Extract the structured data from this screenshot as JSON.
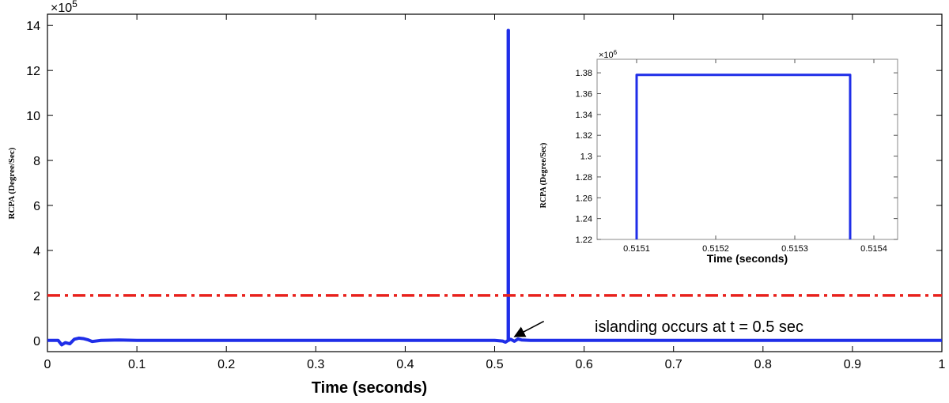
{
  "chart_data": [
    {
      "type": "line",
      "title": "",
      "xlabel": "Time (seconds)",
      "ylabel": "RCPA (Degree/Sec)",
      "y_exponent_label": "×10",
      "y_exponent_power": "5",
      "xlim": [
        0,
        1
      ],
      "ylim": [
        -0.5,
        14.5
      ],
      "x_ticks": [
        0,
        0.1,
        0.2,
        0.3,
        0.4,
        0.5,
        0.6,
        0.7,
        0.8,
        0.9,
        1
      ],
      "x_tick_labels": [
        "0",
        "0.1",
        "0.2",
        "0.3",
        "0.4",
        "0.5",
        "0.6",
        "0.7",
        "0.8",
        "0.9",
        "1"
      ],
      "y_ticks": [
        0,
        2,
        4,
        6,
        8,
        10,
        12,
        14
      ],
      "y_tick_labels": [
        "0",
        "2",
        "4",
        "6",
        "8",
        "10",
        "12",
        "14"
      ],
      "grid": false,
      "series": [
        {
          "color": "#1f2ee8",
          "style": "solid",
          "x": [
            0,
            0.012,
            0.016,
            0.02,
            0.025,
            0.03,
            0.035,
            0.04,
            0.045,
            0.05,
            0.06,
            0.08,
            0.1,
            0.3,
            0.5,
            0.509,
            0.512,
            0.5151,
            0.5151,
            0.5154,
            0.5154,
            0.518,
            0.522,
            0.526,
            0.53,
            0.54,
            0.6,
            1
          ],
          "y": [
            0,
            0,
            -0.2,
            -0.1,
            -0.15,
            0.05,
            0.1,
            0.08,
            0.03,
            -0.05,
            0,
            0.02,
            0,
            0,
            0,
            -0.03,
            -0.08,
            0,
            13.78,
            13.78,
            0,
            0.05,
            -0.04,
            0.06,
            0.02,
            0,
            0,
            0
          ]
        },
        {
          "color": "#e8211c",
          "style": "dashdot",
          "x": [
            0,
            1
          ],
          "y": [
            2,
            2
          ]
        }
      ],
      "annotation": {
        "text": "islanding occurs at t = 0.5 sec",
        "arrow_from": [
          0.555,
          0.85
        ],
        "arrow_to": [
          0.517,
          0.03
        ]
      }
    },
    {
      "type": "line",
      "title": "",
      "xlabel": "Time (seconds)",
      "ylabel": "RCPA (Degree/Sec)",
      "y_exponent_label": "×10",
      "y_exponent_power": "6",
      "xlim": [
        0.51505,
        0.51543
      ],
      "ylim": [
        1.22,
        1.393
      ],
      "x_ticks": [
        0.5151,
        0.5152,
        0.5153,
        0.5154
      ],
      "x_tick_labels": [
        "0.5151",
        "0.5152",
        "0.5153",
        "0.5154"
      ],
      "y_ticks": [
        1.22,
        1.24,
        1.26,
        1.28,
        1.3,
        1.32,
        1.34,
        1.36,
        1.38
      ],
      "y_tick_labels": [
        "1.22",
        "1.24",
        "1.26",
        "1.28",
        "1.3",
        "1.32",
        "1.34",
        "1.36",
        "1.38"
      ],
      "grid": false,
      "series": [
        {
          "color": "#1f2ee8",
          "style": "solid",
          "x": [
            0.5151,
            0.5151,
            0.51537,
            0.51537
          ],
          "y": [
            1.22,
            1.378,
            1.378,
            1.22
          ]
        }
      ]
    }
  ]
}
